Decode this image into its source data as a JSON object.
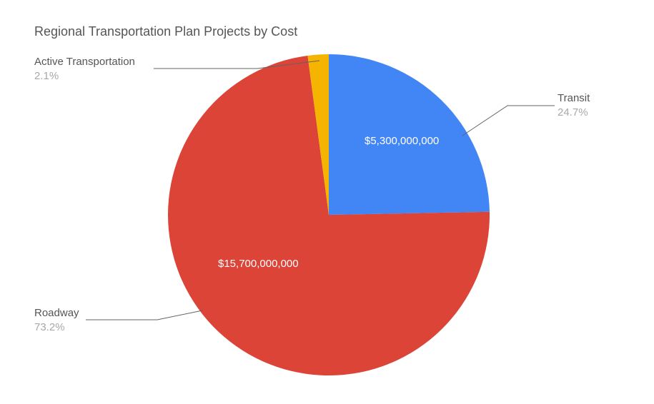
{
  "title": "Regional Transportation Plan Projects by Cost",
  "chart": {
    "type": "pie",
    "background_color": "#ffffff",
    "title_color": "#555555",
    "title_fontsize": 18,
    "value_label_color": "#ffffff",
    "value_label_fontsize": 15,
    "ext_label_name_color": "#555555",
    "ext_label_pct_color": "#a8a8a8",
    "ext_label_fontsize": 15,
    "leader_color": "#636363",
    "slices": [
      {
        "name": "Transit",
        "percent": 24.7,
        "value_text": "$5,300,000,000",
        "raw_value": 5300000000,
        "color": "#4285f4"
      },
      {
        "name": "Roadway",
        "percent": 73.2,
        "value_text": "$15,700,000,000",
        "raw_value": 15700000000,
        "color": "#db4437"
      },
      {
        "name": "Active Transportation",
        "percent": 2.1,
        "value_text": "",
        "raw_value": 450000000,
        "color": "#f4b400"
      }
    ]
  }
}
